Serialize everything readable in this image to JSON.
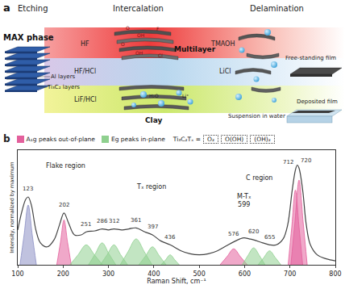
{
  "panel_a": {
    "label": "a",
    "stages": [
      "Etching",
      "Intercalation",
      "Delamination"
    ],
    "max_phase": {
      "title": "MAX phase",
      "labels": [
        "Al layers",
        "Ti₃C₂ layers"
      ]
    },
    "etchants": [
      "HF",
      "HF/HCl",
      "LiF/HCl"
    ],
    "multilayer": {
      "title": "Multilayer",
      "terminations": [
        "O",
        "OH",
        "F",
        "O",
        "OH",
        "Cl"
      ]
    },
    "intercalants": [
      "TMAOH",
      "LiCl"
    ],
    "clay": {
      "title": "Clay",
      "species": [
        "H₂O",
        "Li⁺"
      ]
    },
    "products": [
      "Free-standing film",
      "Suspension in water",
      "Deposited film"
    ]
  },
  "chart_data": {
    "type": "line",
    "label": "b",
    "x_label": "Raman Shift, cm⁻¹",
    "y_label": "Intensity, normalized by maximum",
    "xlim": [
      100,
      800
    ],
    "xticks": [
      100,
      200,
      300,
      400,
      500,
      600,
      700,
      800
    ],
    "ylim": [
      0,
      1.15
    ],
    "tick_labels": "x",
    "grid": false,
    "legend_items": [
      {
        "label": "A₁g peaks out-of-plane",
        "color": "#e3609c"
      },
      {
        "label": "Eg peaks in-plane",
        "color": "#8fd08f"
      }
    ],
    "termination_key": {
      "label": "Ti₃C₂Tₓ =",
      "items": [
        "O₂",
        "O(OH)",
        "(OH)₂"
      ]
    },
    "regions": [
      {
        "label": "Flake region"
      },
      {
        "label": "Tₓ region"
      },
      {
        "label": "M-Tₓ",
        "value": 599
      },
      {
        "label": "C region"
      }
    ],
    "spectrum": {
      "color": "#444444",
      "x": [
        100,
        110,
        118,
        123,
        130,
        140,
        150,
        165,
        180,
        192,
        202,
        212,
        225,
        240,
        251,
        270,
        286,
        300,
        312,
        330,
        345,
        361,
        380,
        397,
        415,
        436,
        460,
        480,
        500,
        520,
        540,
        560,
        576,
        590,
        599,
        610,
        620,
        640,
        655,
        670,
        685,
        695,
        705,
        712,
        716,
        720,
        728,
        736,
        745,
        760,
        780,
        800
      ],
      "values": [
        0.35,
        0.55,
        0.66,
        0.68,
        0.6,
        0.35,
        0.22,
        0.18,
        0.25,
        0.4,
        0.52,
        0.42,
        0.3,
        0.3,
        0.33,
        0.34,
        0.36,
        0.35,
        0.36,
        0.35,
        0.36,
        0.37,
        0.33,
        0.3,
        0.24,
        0.2,
        0.14,
        0.11,
        0.1,
        0.11,
        0.14,
        0.19,
        0.23,
        0.26,
        0.27,
        0.26,
        0.25,
        0.22,
        0.2,
        0.2,
        0.26,
        0.4,
        0.75,
        0.95,
        1.0,
        0.97,
        0.75,
        0.4,
        0.2,
        0.1,
        0.06,
        0.04
      ]
    },
    "peaks": [
      {
        "center": 123,
        "color": "#8c8fc4",
        "x": [
          105,
          114,
          123,
          132,
          141
        ],
        "values": [
          0,
          0.3,
          0.6,
          0.3,
          0
        ]
      },
      {
        "center": 202,
        "color": "#e3609c",
        "x": [
          186,
          194,
          202,
          210,
          218
        ],
        "values": [
          0,
          0.22,
          0.45,
          0.22,
          0
        ]
      },
      {
        "center": 251,
        "color": "#8fd08f",
        "x": [
          215,
          233,
          251,
          269,
          287
        ],
        "values": [
          0,
          0.1,
          0.2,
          0.1,
          0
        ]
      },
      {
        "center": 286,
        "color": "#8fd08f",
        "x": [
          256,
          271,
          286,
          301,
          316
        ],
        "values": [
          0,
          0.11,
          0.22,
          0.11,
          0
        ]
      },
      {
        "center": 312,
        "color": "#8fd08f",
        "x": [
          282,
          297,
          312,
          327,
          342
        ],
        "values": [
          0,
          0.1,
          0.2,
          0.1,
          0
        ]
      },
      {
        "center": 361,
        "color": "#8fd08f",
        "x": [
          326,
          343,
          361,
          379,
          396
        ],
        "values": [
          0,
          0.13,
          0.26,
          0.13,
          0
        ]
      },
      {
        "center": 397,
        "color": "#8fd08f",
        "x": [
          367,
          382,
          397,
          412,
          427
        ],
        "values": [
          0,
          0.09,
          0.18,
          0.09,
          0
        ]
      },
      {
        "center": 436,
        "color": "#8fd08f",
        "x": [
          416,
          426,
          436,
          446,
          456
        ],
        "values": [
          0,
          0.05,
          0.1,
          0.05,
          0
        ]
      },
      {
        "center": 576,
        "color": "#e3609c",
        "x": [
          546,
          561,
          576,
          591,
          606
        ],
        "values": [
          0,
          0.08,
          0.16,
          0.08,
          0
        ]
      },
      {
        "center": 620,
        "color": "#8fd08f",
        "x": [
          595,
          607,
          620,
          633,
          645
        ],
        "values": [
          0,
          0.09,
          0.17,
          0.09,
          0
        ]
      },
      {
        "center": 655,
        "color": "#8fd08f",
        "x": [
          630,
          642,
          655,
          668,
          680
        ],
        "values": [
          0,
          0.07,
          0.14,
          0.07,
          0
        ]
      },
      {
        "center": 712,
        "color": "#e3609c",
        "x": [
          696,
          704,
          712,
          720,
          728
        ],
        "values": [
          0,
          0.38,
          0.75,
          0.38,
          0
        ]
      },
      {
        "center": 720,
        "color": "#e3609c",
        "x": [
          702,
          711,
          720,
          729,
          738
        ],
        "values": [
          0,
          0.43,
          0.85,
          0.43,
          0
        ]
      }
    ]
  }
}
